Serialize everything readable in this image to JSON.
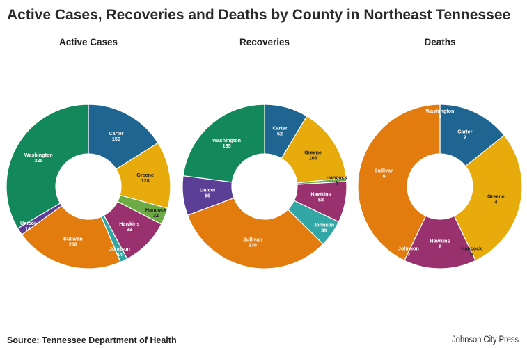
{
  "title": "Active Cases, Recoveries and Deaths by County in Northeast Tennessee",
  "source": "Source: Tennessee Department of Health",
  "logo": "Johnson City Press",
  "colors": {
    "Carter": "#1f6591",
    "Greene": "#e8ab0c",
    "Hancock": "#6cab45",
    "Hawkins": "#98316d",
    "Johnson": "#33a7a5",
    "Sullivan": "#e27c0e",
    "Unicoi": "#5b3e95",
    "Washington": "#13885a"
  },
  "chart_data": [
    {
      "type": "pie",
      "variant": "donut",
      "title": "Active Cases",
      "slices": [
        {
          "label": "Carter",
          "value": 156
        },
        {
          "label": "Greene",
          "value": 128
        },
        {
          "label": "Hancock",
          "value": 32
        },
        {
          "label": "Hawkins",
          "value": 93
        },
        {
          "label": "Johnson",
          "value": 14
        },
        {
          "label": "Sullivan",
          "value": 208
        },
        {
          "label": "Unicoi",
          "value": 14
        },
        {
          "label": "Washington",
          "value": 325
        }
      ]
    },
    {
      "type": "pie",
      "variant": "donut",
      "title": "Recoveries",
      "slices": [
        {
          "label": "Carter",
          "value": 62
        },
        {
          "label": "Greene",
          "value": 106
        },
        {
          "label": "Hancock",
          "value": 5
        },
        {
          "label": "Hawkins",
          "value": 58
        },
        {
          "label": "Johnson",
          "value": 38
        },
        {
          "label": "Sullivan",
          "value": 230
        },
        {
          "label": "Unicoi",
          "value": 56
        },
        {
          "label": "Washington",
          "value": 165
        }
      ]
    },
    {
      "type": "pie",
      "variant": "donut",
      "title": "Deaths",
      "slices": [
        {
          "label": "Carter",
          "value": 2
        },
        {
          "label": "Greene",
          "value": 4
        },
        {
          "label": "Hancock",
          "value": 0
        },
        {
          "label": "Hawkins",
          "value": 2
        },
        {
          "label": "Johnson",
          "value": 0
        },
        {
          "label": "Sullivan",
          "value": 6
        },
        {
          "label": "Washington",
          "value": 0
        }
      ]
    }
  ]
}
